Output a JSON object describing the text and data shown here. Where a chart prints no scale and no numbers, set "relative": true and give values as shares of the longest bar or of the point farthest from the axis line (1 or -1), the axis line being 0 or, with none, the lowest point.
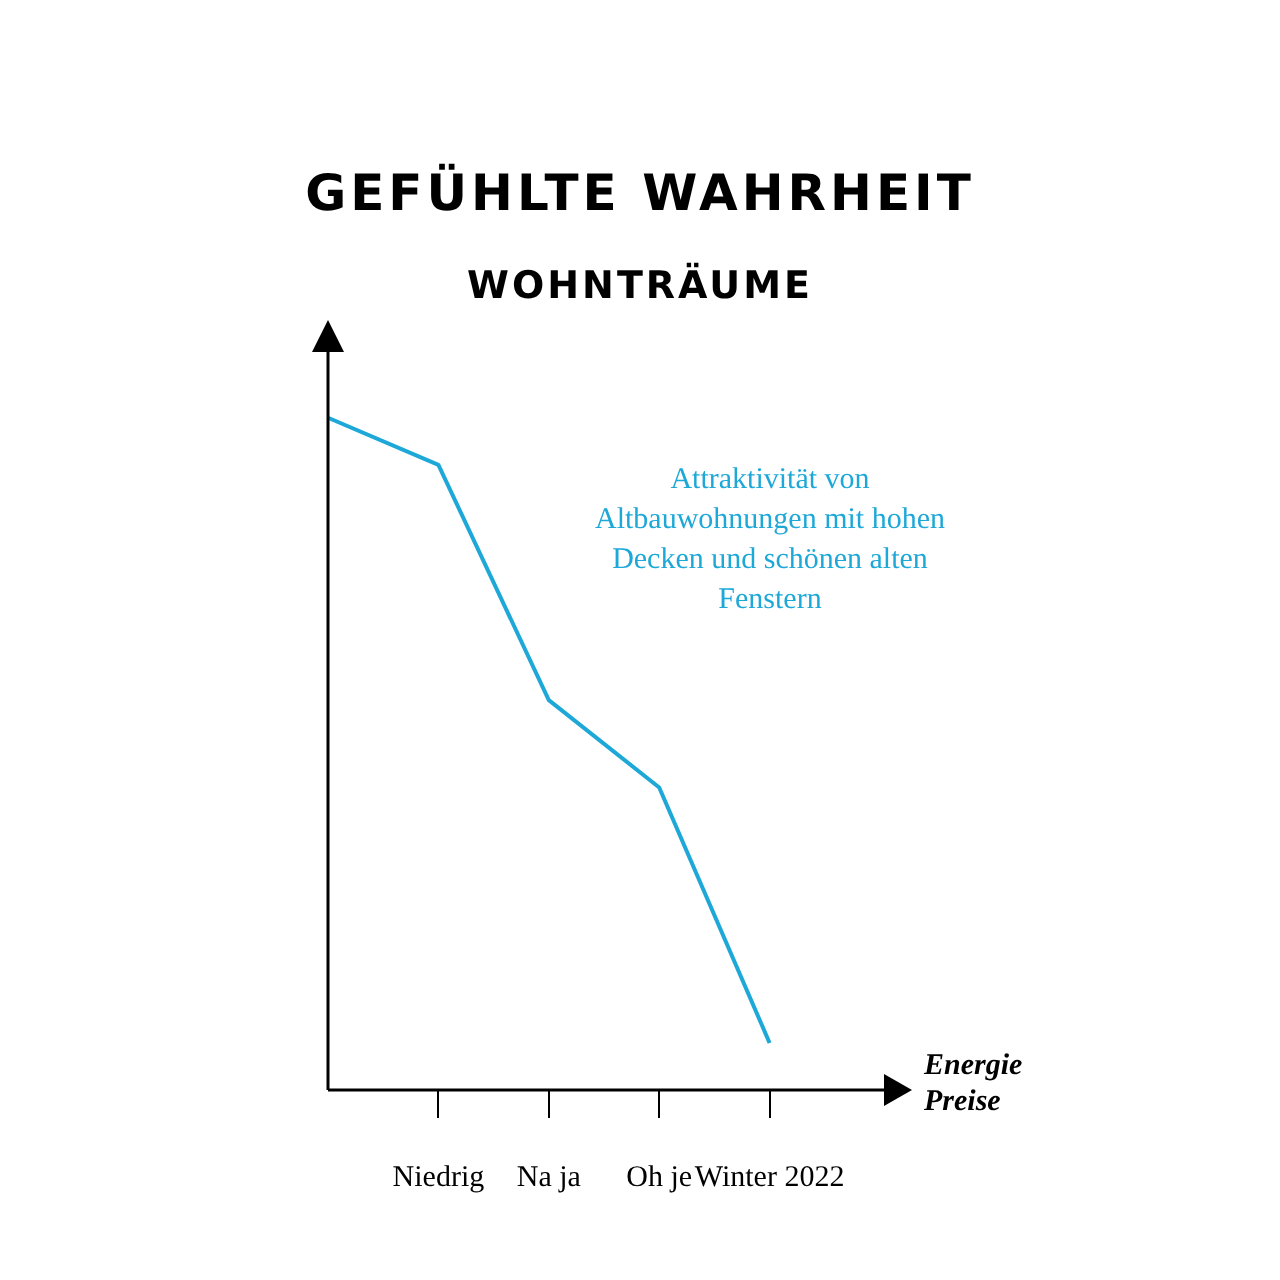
{
  "chart_data": {
    "type": "line",
    "title": "GEFÜHLTE WAHRHEIT",
    "subtitle": "WOHNTRÄUME",
    "xlabel": "Energie Preise",
    "relative": true,
    "categories": [
      null,
      "Niedrig",
      "Na ja",
      "Oh je",
      "Winter 2022",
      null
    ],
    "series": [
      {
        "name": "Attraktivität von Altbauwohnungen mit hohen Decken und schönen alten Fenstern",
        "color": "#1ea8d8",
        "values": [
          1,
          0.93,
          0.58,
          0.45,
          0.07,
          null
        ]
      }
    ],
    "marker": "none",
    "line_style": "solid"
  }
}
